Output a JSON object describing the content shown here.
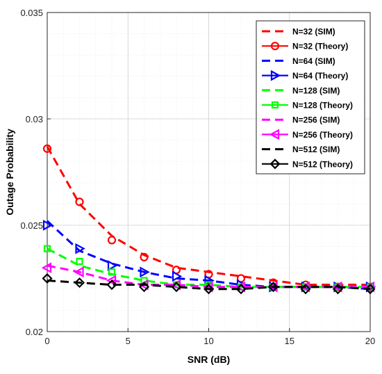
{
  "chart_data": {
    "type": "line",
    "xlabel": "SNR (dB)",
    "ylabel": "Outage Probability",
    "xlim": [
      0,
      20
    ],
    "ylim": [
      0.02,
      0.035
    ],
    "x_ticks": [
      0,
      5,
      10,
      15,
      20
    ],
    "y_ticks": [
      0.02,
      0.025,
      0.03,
      0.035
    ],
    "x_tick_labels": [
      "0",
      "5",
      "10",
      "15",
      "20"
    ],
    "y_tick_labels": [
      "0.02",
      "0.025",
      "0.03",
      "0.035"
    ],
    "grid": true,
    "legend_position": "top-right",
    "x": [
      0,
      2,
      4,
      6,
      8,
      10,
      12,
      14,
      16,
      18,
      20
    ],
    "series": [
      {
        "name": "N=32 (SIM)",
        "color": "#ff0000",
        "style": "dashed",
        "marker": "none",
        "values": [
          0.0287,
          0.026,
          0.0245,
          0.0236,
          0.023,
          0.0228,
          0.0226,
          0.0224,
          0.0222,
          0.0222,
          0.0222
        ]
      },
      {
        "name": "N=32 (Theory)",
        "color": "#ff0000",
        "style": "none",
        "marker": "circle",
        "values": [
          0.0286,
          0.0261,
          0.0243,
          0.0235,
          0.0229,
          0.0227,
          0.0225,
          0.0223,
          0.0222,
          0.0221,
          0.0221
        ]
      },
      {
        "name": "N=64 (SIM)",
        "color": "#0000ff",
        "style": "dashed",
        "marker": "none",
        "values": [
          0.0252,
          0.0238,
          0.0232,
          0.0228,
          0.0225,
          0.0224,
          0.0222,
          0.0221,
          0.0221,
          0.0221,
          0.022
        ]
      },
      {
        "name": "N=64 (Theory)",
        "color": "#0000ff",
        "style": "none",
        "marker": "triangle-right",
        "values": [
          0.025,
          0.0239,
          0.0231,
          0.0228,
          0.0226,
          0.0224,
          0.0222,
          0.0221,
          0.0221,
          0.0221,
          0.0221
        ]
      },
      {
        "name": "N=128 (SIM)",
        "color": "#00ff00",
        "style": "dashed",
        "marker": "none",
        "values": [
          0.0239,
          0.0231,
          0.0227,
          0.0224,
          0.0222,
          0.0222,
          0.0221,
          0.0221,
          0.0221,
          0.0221,
          0.0221
        ]
      },
      {
        "name": "N=128 (Theory)",
        "color": "#00ff00",
        "style": "none",
        "marker": "square",
        "values": [
          0.0239,
          0.0233,
          0.0228,
          0.0224,
          0.0222,
          0.0222,
          0.0221,
          0.0221,
          0.0221,
          0.0221,
          0.0221
        ]
      },
      {
        "name": "N=256 (SIM)",
        "color": "#ff00ff",
        "style": "dashed",
        "marker": "none",
        "values": [
          0.0231,
          0.0228,
          0.0224,
          0.0222,
          0.0222,
          0.0221,
          0.0221,
          0.0221,
          0.0221,
          0.0221,
          0.0221
        ]
      },
      {
        "name": "N=256 (Theory)",
        "color": "#ff00ff",
        "style": "none",
        "marker": "triangle-left",
        "values": [
          0.023,
          0.0228,
          0.0224,
          0.0222,
          0.0222,
          0.0221,
          0.0221,
          0.0221,
          0.0221,
          0.0221,
          0.0221
        ]
      },
      {
        "name": "N=512 (SIM)",
        "color": "#000000",
        "style": "dashed",
        "marker": "none",
        "values": [
          0.0224,
          0.0223,
          0.0222,
          0.0222,
          0.0221,
          0.022,
          0.022,
          0.0221,
          0.0221,
          0.0221,
          0.022
        ]
      },
      {
        "name": "N=512 (Theory)",
        "color": "#000000",
        "style": "none",
        "marker": "diamond",
        "values": [
          0.0225,
          0.0223,
          0.0222,
          0.0221,
          0.0221,
          0.022,
          0.022,
          0.0221,
          0.022,
          0.022,
          0.022
        ]
      }
    ]
  }
}
